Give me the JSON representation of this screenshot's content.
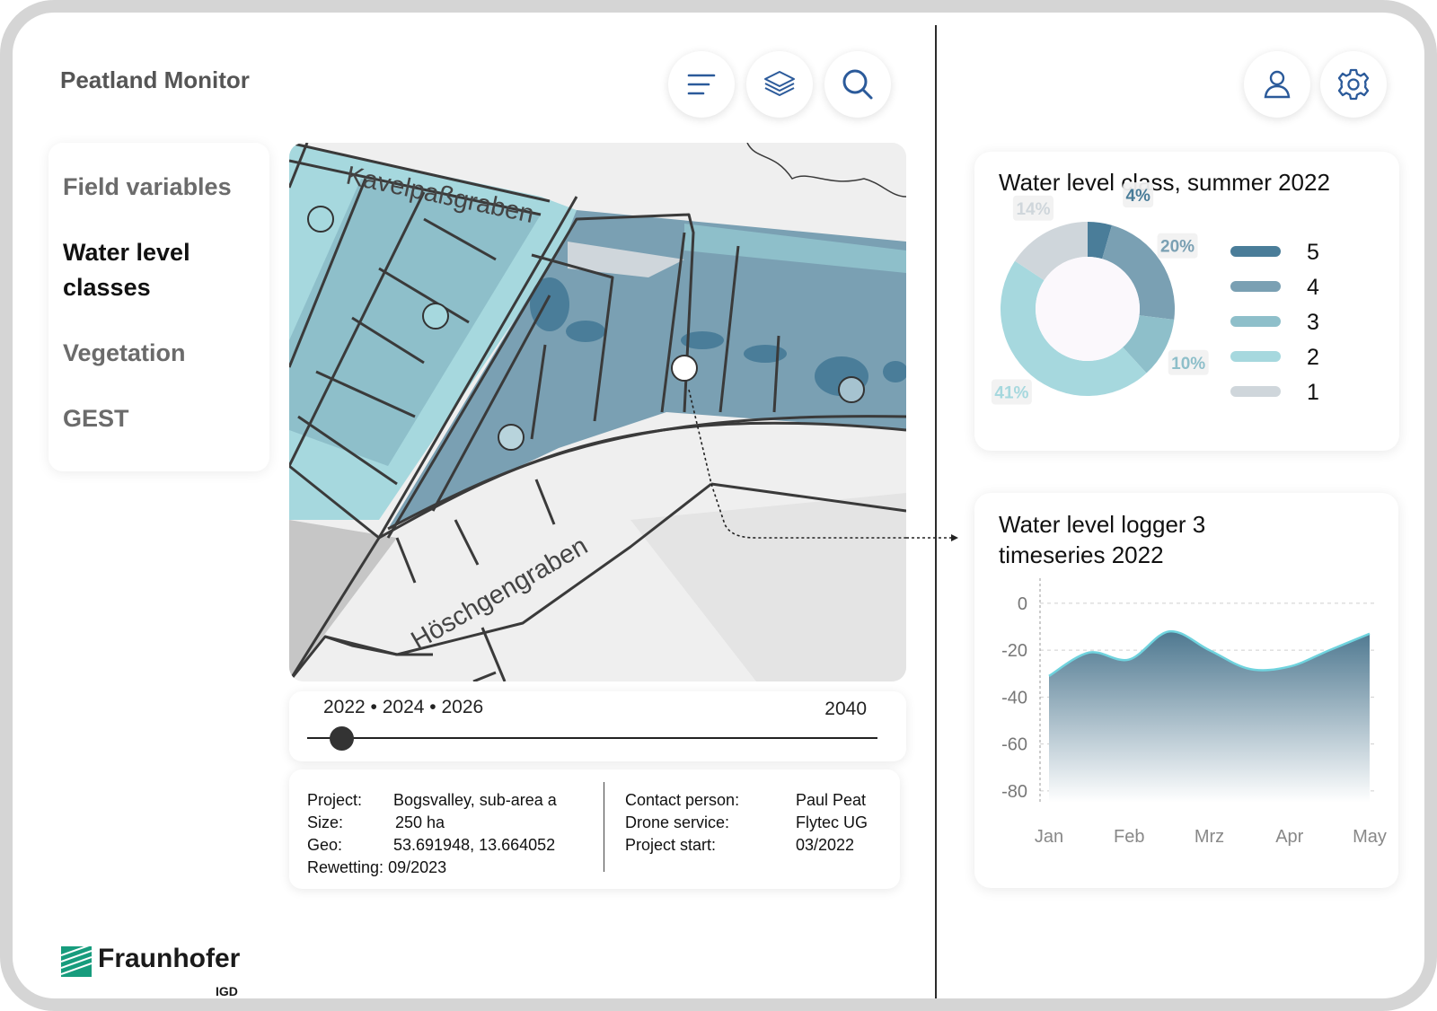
{
  "app": {
    "title": "Peatland Monitor"
  },
  "toolbar": {
    "menu_icon": "menu-icon",
    "layers_icon": "layers-icon",
    "search_icon": "search-icon",
    "user_icon": "user-icon",
    "settings_icon": "gear-icon"
  },
  "nav": {
    "items": [
      {
        "label": "Field variables",
        "active": false
      },
      {
        "label": "Water level classes",
        "active": true
      },
      {
        "label": "Vegetation",
        "active": false
      },
      {
        "label": "GEST",
        "active": false
      }
    ]
  },
  "map": {
    "labels": {
      "top_ditch": "Kavelpaßgraben",
      "bottom_ditch": "Höschgengraben"
    },
    "colors": {
      "class5": "#4a7d99",
      "class4": "#7aa0b3",
      "class3": "#8ebfca",
      "class2": "#a6d8de",
      "class1": "#cfd6db"
    }
  },
  "timeline": {
    "years": "2022 • 2024 • 2026",
    "end_year": "2040",
    "position": 0.04
  },
  "project": {
    "left": [
      {
        "key": "Project:",
        "value": "Bogsvalley, sub-area a"
      },
      {
        "key": "Size:",
        "value": "250 ha"
      },
      {
        "key": "Geo:",
        "value": "53.691948, 13.664052"
      },
      {
        "key": "Rewetting:",
        "value": "09/2023"
      }
    ],
    "right": [
      {
        "key": "Contact person:",
        "value": "Paul Peat"
      },
      {
        "key": "Drone service:",
        "value": "Flytec UG"
      },
      {
        "key": "Project start:",
        "value": "03/2022"
      }
    ]
  },
  "logo": {
    "name": "Fraunhofer",
    "sub": "IGD"
  },
  "chart_data": [
    {
      "type": "pie",
      "title": "Water level class, summer 2022",
      "labels": [
        "5",
        "4",
        "3",
        "2",
        "1"
      ],
      "values": [
        4,
        20,
        10,
        41,
        14
      ],
      "value_labels": [
        "4%",
        "20%",
        "10%",
        "41%",
        "14%"
      ],
      "colors": [
        "#4a7d99",
        "#7aa0b3",
        "#8ebfca",
        "#a6d8de",
        "#cfd6db"
      ],
      "legend": "right"
    },
    {
      "type": "area",
      "title": "Water level logger 3 timeseries 2022",
      "categories": [
        "Jan",
        "Feb",
        "Mrz",
        "Apr",
        "May"
      ],
      "x": [
        0,
        0.5,
        1,
        1.5,
        2,
        2.5,
        3,
        3.5,
        4
      ],
      "values": [
        -31,
        -21,
        -24,
        -12,
        -20,
        -28,
        -27,
        -20,
        -13
      ],
      "yticks": [
        0,
        -20,
        -40,
        -60,
        -80
      ],
      "ylim": [
        -85,
        3
      ],
      "grid": true
    }
  ]
}
